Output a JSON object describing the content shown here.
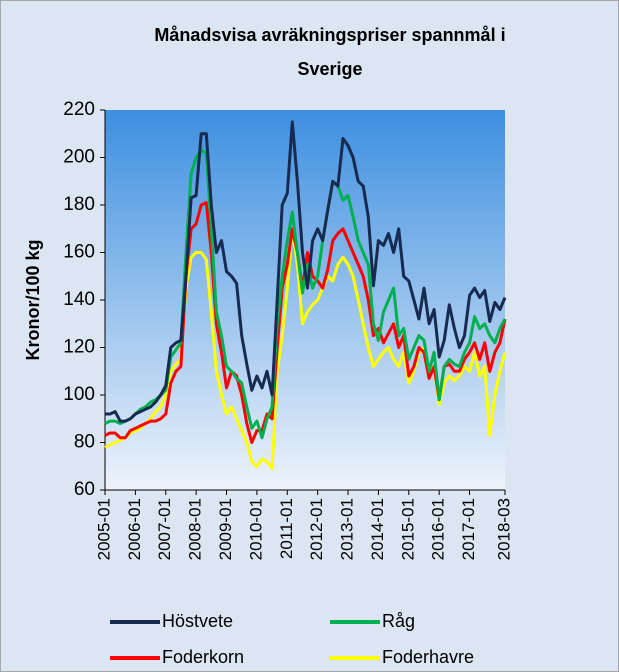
{
  "chart_data": {
    "type": "line",
    "title": [
      "Månadsvisa avräkningspriser spannmål i",
      "Sverige"
    ],
    "y_label": "Kronor/100 kg",
    "categories": [
      "2005-01",
      null,
      null,
      null,
      null,
      null,
      "2006-01",
      null,
      null,
      null,
      null,
      null,
      "2007-01",
      null,
      null,
      null,
      null,
      null,
      "2008-01",
      null,
      null,
      null,
      null,
      null,
      "2009-01",
      null,
      null,
      null,
      null,
      null,
      "2010-01",
      null,
      null,
      null,
      null,
      null,
      "2011-01",
      null,
      null,
      null,
      null,
      null,
      "2012-01",
      null,
      null,
      null,
      null,
      null,
      "2013-01",
      null,
      null,
      null,
      null,
      null,
      "2014-01",
      null,
      null,
      null,
      null,
      null,
      "2015-01",
      null,
      null,
      null,
      null,
      null,
      "2016-01",
      null,
      null,
      null,
      null,
      null,
      "2017-01",
      null,
      null,
      null,
      null,
      null,
      null,
      "2018-03"
    ],
    "series": [
      {
        "name": "Höstvete",
        "color": "#172a4f",
        "values": [
          92,
          92,
          93,
          89,
          89,
          90,
          92,
          93,
          94,
          95,
          97,
          100,
          104,
          120,
          122,
          123,
          150,
          183,
          184,
          210,
          210,
          180,
          160,
          165,
          152,
          150,
          147,
          125,
          113,
          102,
          108,
          103,
          110,
          100,
          140,
          180,
          185,
          215,
          190,
          160,
          145,
          165,
          170,
          165,
          178,
          190,
          188,
          208,
          205,
          200,
          190,
          188,
          175,
          146,
          165,
          163,
          168,
          160,
          170,
          150,
          148,
          140,
          132,
          145,
          130,
          136,
          116,
          123,
          138,
          128,
          120,
          125,
          142,
          145,
          141,
          144,
          131,
          139,
          136,
          141
        ]
      },
      {
        "name": "Råg",
        "color": "#00b050",
        "values": [
          88,
          89,
          89,
          88,
          89,
          90,
          92,
          94,
          95,
          97,
          98,
          100,
          102,
          116,
          119,
          122,
          160,
          193,
          200,
          203,
          202,
          170,
          135,
          125,
          112,
          110,
          107,
          105,
          95,
          86,
          89,
          82,
          90,
          95,
          130,
          150,
          165,
          177,
          160,
          143,
          155,
          145,
          150,
          165,
          178,
          190,
          188,
          182,
          184,
          175,
          165,
          160,
          155,
          130,
          123,
          135,
          140,
          145,
          125,
          128,
          115,
          120,
          125,
          123,
          110,
          118,
          98,
          112,
          115,
          113,
          112,
          118,
          122,
          133,
          128,
          130,
          125,
          122,
          128,
          132
        ]
      },
      {
        "name": "Foderkorn",
        "color": "#ff0000",
        "values": [
          83,
          84,
          84,
          82,
          82,
          85,
          86,
          87,
          88,
          89,
          89,
          90,
          92,
          105,
          110,
          112,
          150,
          170,
          172,
          180,
          181,
          160,
          130,
          118,
          103,
          110,
          108,
          100,
          88,
          80,
          85,
          85,
          92,
          90,
          120,
          145,
          155,
          170,
          160,
          145,
          160,
          150,
          148,
          145,
          153,
          165,
          168,
          170,
          165,
          160,
          155,
          150,
          140,
          125,
          128,
          122,
          126,
          130,
          120,
          125,
          108,
          112,
          120,
          118,
          107,
          112,
          98,
          112,
          113,
          110,
          110,
          115,
          118,
          122,
          115,
          122,
          110,
          118,
          122,
          132
        ]
      },
      {
        "name": "Foderhavre",
        "color": "#ffff00",
        "values": [
          78,
          79,
          80,
          81,
          82,
          84,
          85,
          86,
          88,
          90,
          93,
          95,
          100,
          110,
          113,
          115,
          145,
          158,
          160,
          160,
          157,
          135,
          110,
          100,
          92,
          95,
          90,
          85,
          80,
          72,
          70,
          73,
          72,
          69,
          110,
          125,
          145,
          170,
          155,
          130,
          135,
          138,
          140,
          145,
          150,
          148,
          155,
          158,
          155,
          150,
          140,
          130,
          120,
          112,
          115,
          118,
          120,
          115,
          112,
          118,
          105,
          110,
          118,
          120,
          110,
          112,
          96,
          105,
          108,
          106,
          108,
          112,
          110,
          118,
          108,
          112,
          83,
          100,
          110,
          118
        ]
      }
    ],
    "ylim": [
      60,
      220
    ],
    "yticks": [
      60,
      80,
      100,
      120,
      140,
      160,
      180,
      200,
      220
    ],
    "grid": false
  }
}
